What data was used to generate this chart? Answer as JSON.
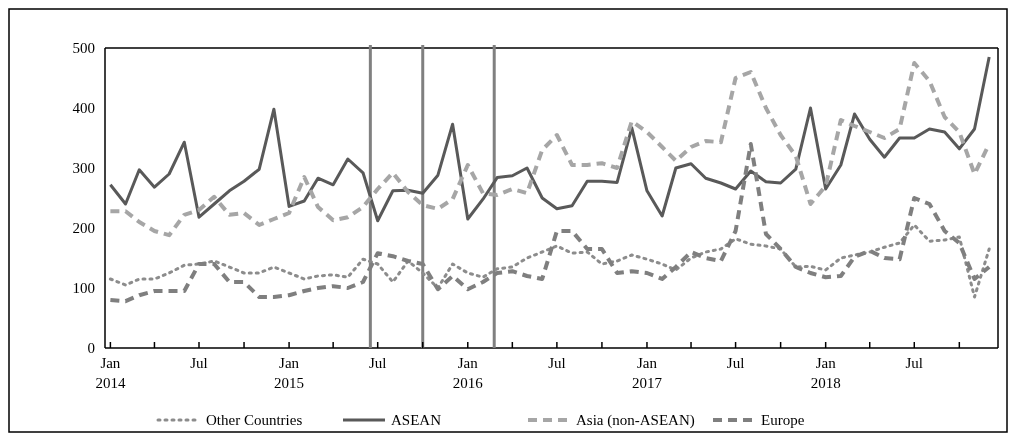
{
  "chart_data": {
    "type": "line",
    "xlim": [
      "2013-12-21",
      "2018-12-19"
    ],
    "ylim": [
      0,
      500
    ],
    "yticks": [
      0,
      100,
      200,
      300,
      400,
      500
    ],
    "xticks": [
      {
        "value": "2014-01",
        "label": "Jan\n2014"
      },
      {
        "value": "2014-04",
        "label": null
      },
      {
        "value": "2014-07",
        "label": "Jul"
      },
      {
        "value": "2014-10",
        "label": null
      },
      {
        "value": "2015-01",
        "label": "Jan\n2015"
      },
      {
        "value": "2015-04",
        "label": null
      },
      {
        "value": "2015-07",
        "label": "Jul"
      },
      {
        "value": "2015-10",
        "label": null
      },
      {
        "value": "2016-01",
        "label": "Jan\n2016"
      },
      {
        "value": "2016-04",
        "label": null
      },
      {
        "value": "2016-07",
        "label": "Jul"
      },
      {
        "value": "2016-10",
        "label": null
      },
      {
        "value": "2017-01",
        "label": "Jan\n2017"
      },
      {
        "value": "2017-04",
        "label": null
      },
      {
        "value": "2017-07",
        "label": "Jul"
      },
      {
        "value": "2017-10",
        "label": null
      },
      {
        "value": "2018-01",
        "label": "Jan\n2018"
      },
      {
        "value": "2018-04",
        "label": null
      },
      {
        "value": "2018-07",
        "label": "Jul"
      },
      {
        "value": "2018-10",
        "label": null
      }
    ],
    "x": [
      "2014-01",
      "2014-02",
      "2014-03",
      "2014-04",
      "2014-05",
      "2014-06",
      "2014-07",
      "2014-08",
      "2014-09",
      "2014-10",
      "2014-11",
      "2014-12",
      "2015-01",
      "2015-02",
      "2015-03",
      "2015-04",
      "2015-05",
      "2015-06",
      "2015-07",
      "2015-08",
      "2015-09",
      "2015-10",
      "2015-11",
      "2015-12",
      "2016-01",
      "2016-02",
      "2016-03",
      "2016-04",
      "2016-05",
      "2016-06",
      "2016-07",
      "2016-08",
      "2016-09",
      "2016-10",
      "2016-11",
      "2016-12",
      "2017-01",
      "2017-02",
      "2017-03",
      "2017-04",
      "2017-05",
      "2017-06",
      "2017-07",
      "2017-08",
      "2017-09",
      "2017-10",
      "2017-11",
      "2017-12",
      "2018-01",
      "2018-02",
      "2018-03",
      "2018-04",
      "2018-05",
      "2018-06",
      "2018-07",
      "2018-08",
      "2018-09",
      "2018-10",
      "2018-11",
      "2018-12"
    ],
    "grid": false,
    "legend": "bottom",
    "series": [
      {
        "name": "Other Countries",
        "color": "#8c8c8c",
        "line_style": "dotted",
        "values": [
          115,
          105,
          115,
          115,
          125,
          138,
          140,
          145,
          135,
          125,
          125,
          135,
          125,
          115,
          120,
          122,
          118,
          148,
          140,
          110,
          145,
          125,
          100,
          140,
          125,
          118,
          132,
          135,
          150,
          160,
          170,
          158,
          160,
          140,
          145,
          155,
          148,
          140,
          130,
          150,
          160,
          165,
          182,
          173,
          170,
          165,
          135,
          136,
          130,
          150,
          155,
          160,
          168,
          175,
          205,
          178,
          180,
          185,
          85,
          165
        ]
      },
      {
        "name": "ASEAN",
        "color": "#595959",
        "line_style": "solid",
        "values": [
          272,
          240,
          297,
          268,
          290,
          343,
          218,
          240,
          262,
          278,
          298,
          398,
          236,
          245,
          283,
          272,
          315,
          292,
          212,
          262,
          263,
          258,
          288,
          373,
          215,
          248,
          284,
          287,
          300,
          250,
          232,
          237,
          278,
          278,
          276,
          367,
          262,
          220,
          300,
          307,
          283,
          275,
          265,
          295,
          277,
          275,
          298,
          400,
          265,
          305,
          390,
          348,
          318,
          350,
          350,
          365,
          360,
          332,
          365,
          485
        ]
      },
      {
        "name": "Asia (non-ASEAN)",
        "color": "#a6a6a6",
        "line_style": "dashed",
        "values": [
          228,
          228,
          210,
          195,
          188,
          222,
          230,
          252,
          222,
          225,
          205,
          215,
          225,
          285,
          235,
          213,
          218,
          235,
          265,
          292,
          260,
          238,
          232,
          248,
          305,
          258,
          255,
          265,
          258,
          330,
          355,
          305,
          305,
          308,
          300,
          378,
          360,
          335,
          312,
          335,
          345,
          343,
          450,
          460,
          400,
          355,
          320,
          240,
          270,
          380,
          370,
          360,
          350,
          365,
          475,
          445,
          385,
          360,
          290,
          340
        ]
      },
      {
        "name": "Europe",
        "color": "#7f7f7f",
        "line_style": "dashed",
        "values": [
          80,
          78,
          88,
          95,
          95,
          95,
          140,
          140,
          110,
          110,
          85,
          85,
          88,
          95,
          100,
          103,
          100,
          110,
          158,
          153,
          145,
          140,
          98,
          120,
          98,
          110,
          125,
          128,
          120,
          115,
          195,
          195,
          165,
          165,
          125,
          128,
          125,
          115,
          135,
          160,
          150,
          145,
          195,
          340,
          190,
          165,
          135,
          125,
          118,
          120,
          152,
          162,
          150,
          148,
          250,
          240,
          195,
          175,
          115,
          135
        ]
      }
    ],
    "ref_lines": [
      {
        "axis": "x",
        "value": "2015-06-16",
        "color": "#808080"
      },
      {
        "axis": "x",
        "value": "2015-10-01",
        "color": "#808080"
      },
      {
        "axis": "x",
        "value": "2016-02-24",
        "color": "#808080"
      }
    ]
  }
}
